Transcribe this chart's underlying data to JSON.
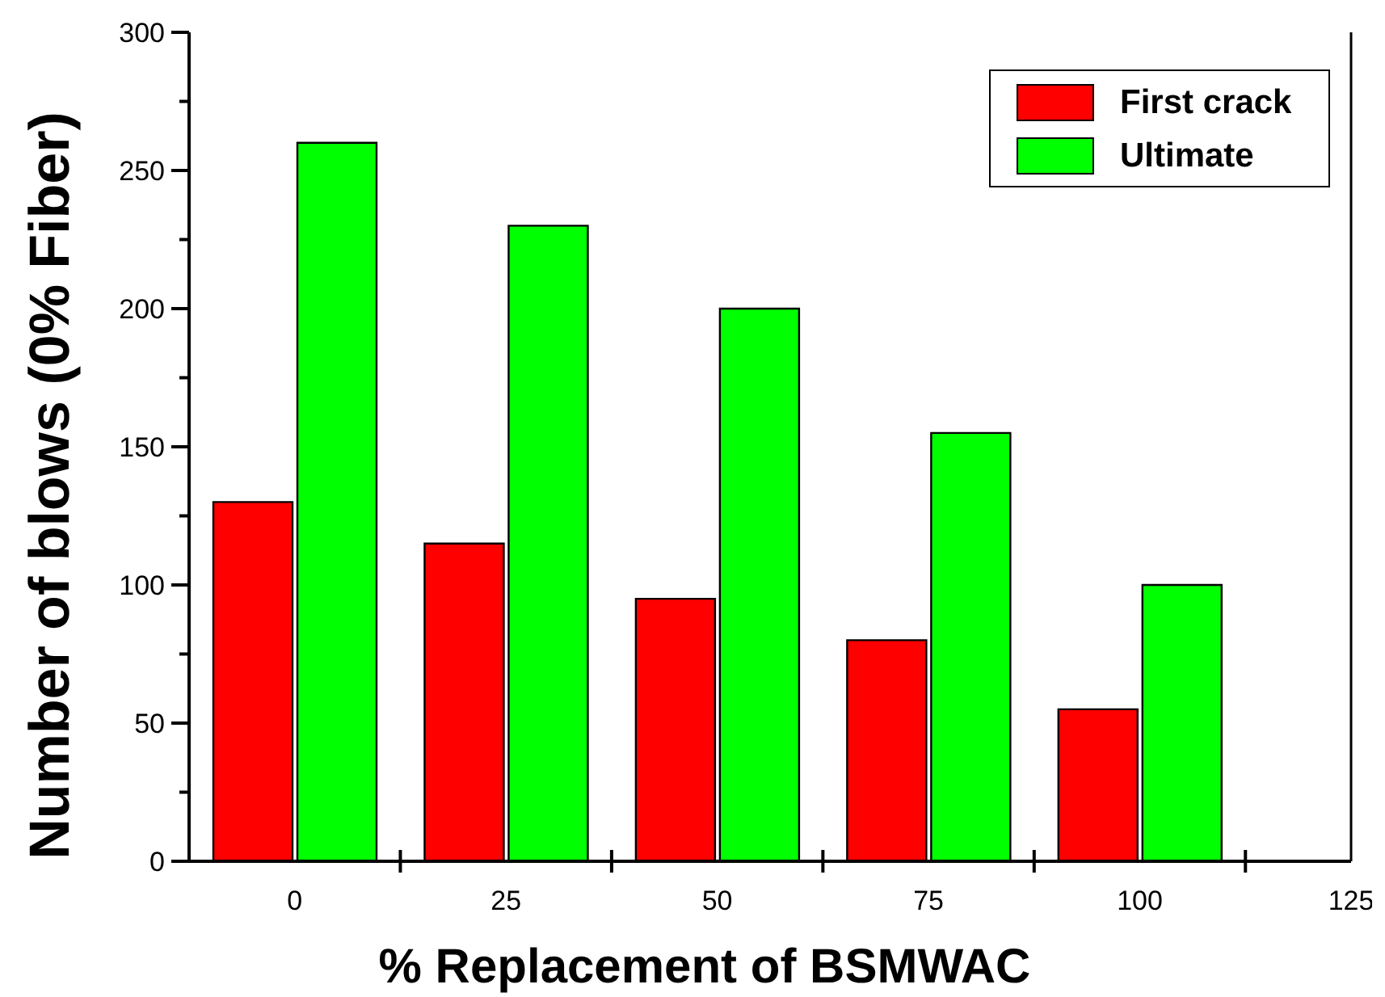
{
  "chart_data": {
    "type": "bar",
    "xlabel": "% Replacement of BSMWAC",
    "ylabel": "Number of blows (0% Fiber)",
    "x": [
      0,
      25,
      50,
      75,
      100
    ],
    "series": [
      {
        "name": "First crack",
        "color": "#ff0000",
        "values": [
          130,
          115,
          95,
          80,
          55
        ]
      },
      {
        "name": "Ultimate",
        "color": "#00ff00",
        "values": [
          260,
          230,
          200,
          155,
          100
        ]
      }
    ],
    "xlim": [
      -12.5,
      125
    ],
    "xticks": [
      0,
      {
        "value": 12.5,
        "label": null
      },
      25,
      {
        "value": 37.5,
        "label": null
      },
      50,
      {
        "value": 62.5,
        "label": null
      },
      75,
      {
        "value": 87.5,
        "label": null
      },
      100,
      {
        "value": 112.5,
        "label": null
      },
      125
    ],
    "ylim": [
      0,
      300
    ],
    "yticks": [
      0,
      {
        "value": 25,
        "label": null
      },
      50,
      {
        "value": 75,
        "label": null
      },
      100,
      {
        "value": 125,
        "label": null
      },
      150,
      {
        "value": 175,
        "label": null
      },
      200,
      {
        "value": 225,
        "label": null
      },
      250,
      {
        "value": 275,
        "label": null
      },
      300
    ],
    "grid": false,
    "legend": "top right"
  }
}
